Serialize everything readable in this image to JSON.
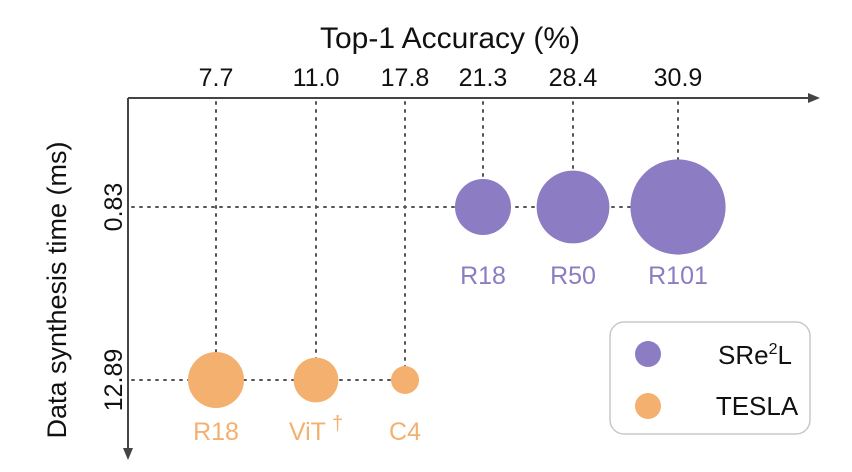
{
  "chart_data": {
    "type": "scatter",
    "title": "Top-1  Accuracy (%)",
    "ylabel": "Data synthesis time (ms)",
    "x_ticks": [
      "7.7",
      "11.0",
      "17.8",
      "21.3",
      "28.4",
      "30.9"
    ],
    "y_ticks": [
      "0.83",
      "12.89"
    ],
    "colors": {
      "SRe2L": "#8c7cc3",
      "TESLA": "#f4b06e",
      "axis": "#444444",
      "guide": "#555555"
    },
    "series": [
      {
        "name": "SRe2L",
        "points": [
          {
            "label": "R18",
            "x": 21.3,
            "y": 0.83,
            "size": 1.0
          },
          {
            "label": "R50",
            "x": 28.4,
            "y": 0.83,
            "size": 1.3
          },
          {
            "label": "R101",
            "x": 30.9,
            "y": 0.83,
            "size": 1.7
          }
        ]
      },
      {
        "name": "TESLA",
        "points": [
          {
            "label": "R18",
            "x": 7.7,
            "y": 12.89,
            "size": 1.0
          },
          {
            "label": "ViT",
            "label_mark": "†",
            "x": 11.0,
            "y": 12.89,
            "size": 0.8
          },
          {
            "label": "C4",
            "x": 17.8,
            "y": 12.89,
            "size": 0.5
          }
        ]
      }
    ],
    "legend": {
      "position": "bottom-right",
      "entries": [
        {
          "series": "SRe2L",
          "text": "SRe",
          "sup": "2",
          "text_after": "L"
        },
        {
          "series": "TESLA",
          "text": "TESLA"
        }
      ]
    }
  }
}
